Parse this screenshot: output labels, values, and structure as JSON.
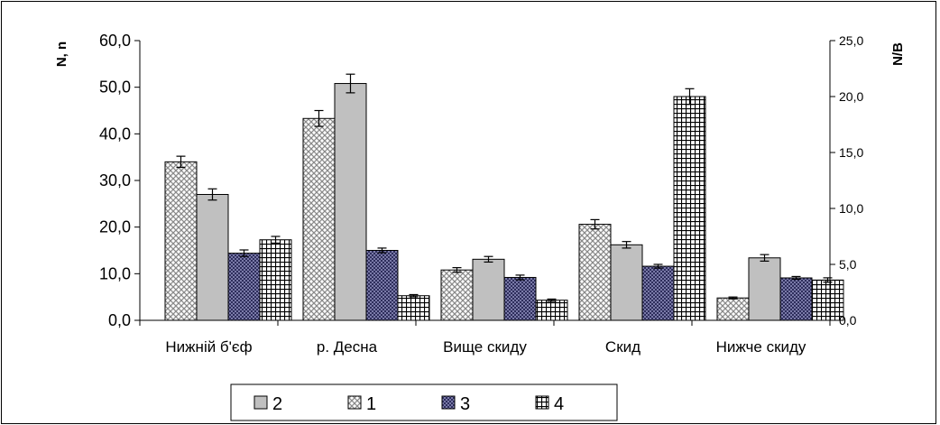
{
  "chart_data": {
    "type": "bar",
    "categories": [
      "Нижній б'єф",
      "р. Десна",
      "Вище скиду",
      "Скид",
      "Нижче скиду"
    ],
    "left_axis": {
      "label": "N, n",
      "ylim": [
        0,
        60
      ],
      "ticks": [
        "0,0",
        "10,0",
        "20,0",
        "30,0",
        "40,0",
        "50,0",
        "60,0"
      ]
    },
    "right_axis": {
      "label": "N/B",
      "ylim": [
        0,
        25
      ],
      "ticks": [
        "0,0",
        "5,0",
        "10,0",
        "15,0",
        "20,0",
        "25,0"
      ]
    },
    "series": [
      {
        "name": "1",
        "axis": "left",
        "pattern": "crosshatch-light",
        "values": [
          34.0,
          43.3,
          10.8,
          20.6,
          4.8
        ],
        "errors": [
          1.2,
          1.7,
          0.5,
          1.0,
          0.2
        ]
      },
      {
        "name": "2",
        "axis": "left",
        "pattern": "solid-gray",
        "values": [
          27.0,
          50.8,
          13.1,
          16.2,
          13.4
        ],
        "errors": [
          1.2,
          2.0,
          0.6,
          0.7,
          0.7
        ]
      },
      {
        "name": "3",
        "axis": "left",
        "pattern": "checker-dark",
        "values": [
          14.4,
          15.0,
          9.2,
          11.6,
          9.1
        ],
        "errors": [
          0.7,
          0.5,
          0.5,
          0.4,
          0.3
        ]
      },
      {
        "name": "4",
        "axis": "right",
        "pattern": "grid",
        "values": [
          7.2,
          2.2,
          1.8,
          20.0,
          3.6
        ],
        "errors": [
          0.3,
          0.1,
          0.1,
          0.7,
          0.2
        ]
      }
    ],
    "legend": {
      "placement": "bottom-center",
      "order": [
        "2",
        "1",
        "3",
        "4"
      ]
    },
    "grid": false,
    "colors": {
      "series_2": "#c0c0c0",
      "series_3": "#333366",
      "pattern_light": "#9a9a9a",
      "axis": "#000000"
    }
  }
}
